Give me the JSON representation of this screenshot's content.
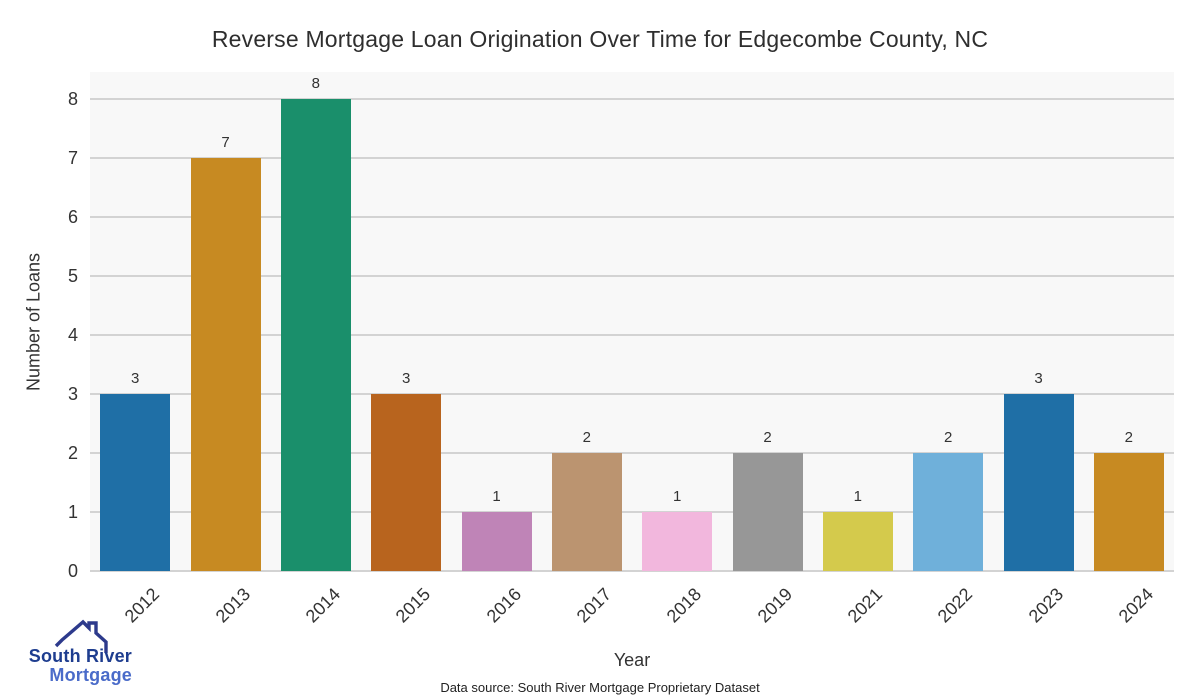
{
  "title": "Reverse Mortgage Loan Origination Over Time for Edgecombe County, NC",
  "chart_data": {
    "type": "bar",
    "title": "Reverse Mortgage Loan Origination Over Time for Edgecombe County, NC",
    "xlabel": "Year",
    "ylabel": "Number of Loans",
    "categories": [
      "2012",
      "2013",
      "2014",
      "2015",
      "2016",
      "2017",
      "2018",
      "2019",
      "2021",
      "2022",
      "2023",
      "2024"
    ],
    "values": [
      3,
      7,
      8,
      3,
      1,
      2,
      1,
      2,
      1,
      2,
      3,
      2
    ],
    "bar_colors": [
      "#1f6fa6",
      "#c78a22",
      "#1a8f6b",
      "#b8641e",
      "#bf84b7",
      "#bb9470",
      "#f2b7dd",
      "#979797",
      "#d4ca4c",
      "#6fb0da",
      "#1f6fa6",
      "#c78a22"
    ],
    "yticks": [
      0,
      1,
      2,
      3,
      4,
      5,
      6,
      7,
      8
    ],
    "ylim": [
      0,
      8.45
    ],
    "grid": true,
    "legend": "none",
    "plot_bg_color": "#f8f8f8",
    "grid_color": "#d3d3d3"
  },
  "footer": {
    "data_source": "Data source: South River Mortgage Proprietary Dataset"
  },
  "logo": {
    "line1": "South River",
    "line2": "Mortgage",
    "line1_color": "#1e3d8f",
    "line2_color": "#4a6bc9",
    "roof_color": "#2d3a8c"
  }
}
